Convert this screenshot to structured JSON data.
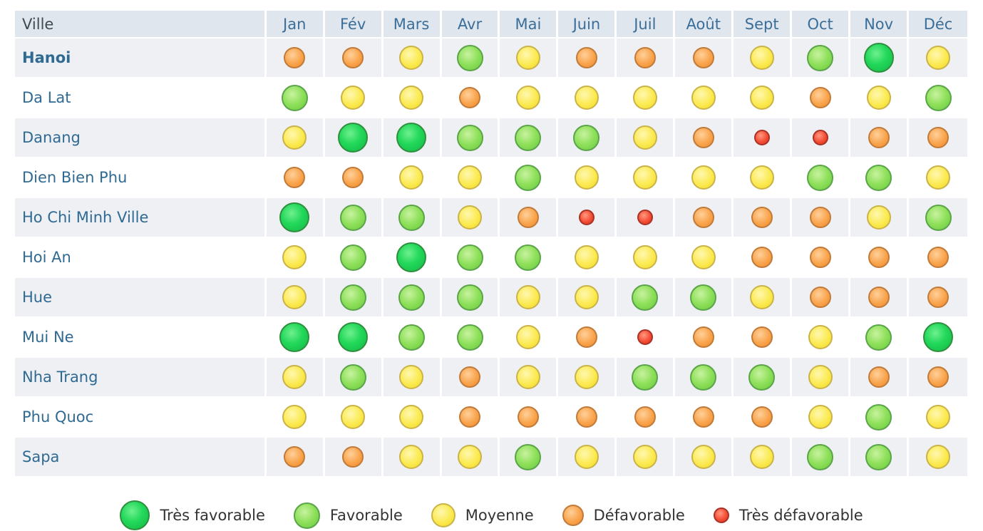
{
  "table": {
    "city_header": "Ville",
    "months": [
      "Jan",
      "Fév",
      "Mars",
      "Avr",
      "Mai",
      "Juin",
      "Juil",
      "Août",
      "Sept",
      "Oct",
      "Nov",
      "Déc"
    ],
    "rows": [
      {
        "city": "Hanoi",
        "selected": true,
        "ratings": [
          "défavorable",
          "défavorable",
          "moyenne",
          "favorable",
          "moyenne",
          "défavorable",
          "défavorable",
          "défavorable",
          "moyenne",
          "favorable",
          "très favorable",
          "moyenne"
        ]
      },
      {
        "city": "Da Lat",
        "ratings": [
          "favorable",
          "moyenne",
          "moyenne",
          "défavorable",
          "moyenne",
          "moyenne",
          "moyenne",
          "moyenne",
          "moyenne",
          "défavorable",
          "moyenne",
          "favorable"
        ]
      },
      {
        "city": "Danang",
        "ratings": [
          "moyenne",
          "très favorable",
          "très favorable",
          "favorable",
          "favorable",
          "favorable",
          "moyenne",
          "défavorable",
          "très défavorable",
          "très défavorable",
          "défavorable",
          "défavorable"
        ]
      },
      {
        "city": "Dien Bien Phu",
        "ratings": [
          "défavorable",
          "défavorable",
          "moyenne",
          "moyenne",
          "favorable",
          "moyenne",
          "moyenne",
          "moyenne",
          "moyenne",
          "favorable",
          "favorable",
          "moyenne"
        ]
      },
      {
        "city": "Ho Chi Minh Ville",
        "ratings": [
          "très favorable",
          "favorable",
          "favorable",
          "moyenne",
          "défavorable",
          "très défavorable",
          "très défavorable",
          "défavorable",
          "défavorable",
          "défavorable",
          "moyenne",
          "favorable"
        ]
      },
      {
        "city": "Hoi An",
        "ratings": [
          "moyenne",
          "favorable",
          "très favorable",
          "favorable",
          "favorable",
          "moyenne",
          "moyenne",
          "moyenne",
          "défavorable",
          "défavorable",
          "défavorable",
          "défavorable"
        ]
      },
      {
        "city": "Hue",
        "ratings": [
          "moyenne",
          "favorable",
          "favorable",
          "favorable",
          "moyenne",
          "moyenne",
          "favorable",
          "favorable",
          "moyenne",
          "défavorable",
          "défavorable",
          "défavorable"
        ]
      },
      {
        "city": "Mui Ne",
        "ratings": [
          "très favorable",
          "très favorable",
          "favorable",
          "favorable",
          "moyenne",
          "défavorable",
          "très défavorable",
          "défavorable",
          "défavorable",
          "moyenne",
          "favorable",
          "très favorable"
        ]
      },
      {
        "city": "Nha Trang",
        "ratings": [
          "moyenne",
          "favorable",
          "moyenne",
          "défavorable",
          "moyenne",
          "moyenne",
          "favorable",
          "favorable",
          "favorable",
          "moyenne",
          "défavorable",
          "défavorable"
        ]
      },
      {
        "city": "Phu Quoc",
        "ratings": [
          "moyenne",
          "moyenne",
          "moyenne",
          "défavorable",
          "défavorable",
          "défavorable",
          "défavorable",
          "défavorable",
          "défavorable",
          "moyenne",
          "favorable",
          "moyenne"
        ]
      },
      {
        "city": "Sapa",
        "ratings": [
          "défavorable",
          "défavorable",
          "moyenne",
          "moyenne",
          "favorable",
          "moyenne",
          "moyenne",
          "moyenne",
          "moyenne",
          "favorable",
          "favorable",
          "moyenne"
        ]
      }
    ]
  },
  "legend": [
    {
      "key": "très favorable",
      "label": "Très favorable",
      "color": "#1fd655"
    },
    {
      "key": "favorable",
      "label": "Favorable",
      "color": "#8ee05a"
    },
    {
      "key": "moyenne",
      "label": "Moyenne",
      "color": "#fbea50"
    },
    {
      "key": "défavorable",
      "label": "Défavorable",
      "color": "#f9a44c"
    },
    {
      "key": "très défavorable",
      "label": "Très défavorable",
      "color": "#f44e36"
    }
  ]
}
